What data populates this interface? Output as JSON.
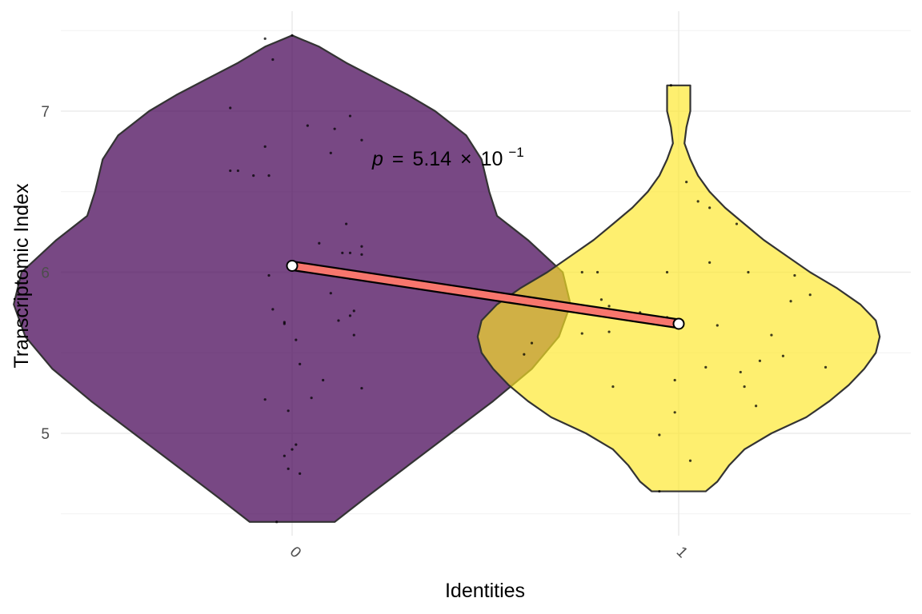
{
  "chart_data": {
    "type": "violin",
    "title": "",
    "xlabel": "Identities",
    "ylabel": "Transcriptomic Index",
    "categories": [
      "0",
      "1"
    ],
    "ylim": [
      4.42,
      7.52
    ],
    "yticks": [
      5,
      6,
      7
    ],
    "ytick_labels": [
      "5",
      "6",
      "7"
    ],
    "grid": true,
    "legend": "none",
    "colors": {
      "0": "#440154",
      "1": "#FDE725",
      "trend_line": "#F8766D"
    },
    "groups": [
      {
        "name": "0",
        "range": [
          4.45,
          7.47
        ],
        "mean": 6.04,
        "density": [
          [
            4.45,
            0.11
          ],
          [
            4.6,
            0.19
          ],
          [
            4.8,
            0.3
          ],
          [
            5.0,
            0.41
          ],
          [
            5.2,
            0.52
          ],
          [
            5.4,
            0.62
          ],
          [
            5.6,
            0.69
          ],
          [
            5.8,
            0.72
          ],
          [
            6.0,
            0.7
          ],
          [
            6.2,
            0.61
          ],
          [
            6.35,
            0.53
          ],
          [
            6.5,
            0.51
          ],
          [
            6.6,
            0.5
          ],
          [
            6.7,
            0.49
          ],
          [
            6.85,
            0.45
          ],
          [
            7.0,
            0.37
          ],
          [
            7.1,
            0.3
          ],
          [
            7.2,
            0.22
          ],
          [
            7.3,
            0.14
          ],
          [
            7.4,
            0.07
          ],
          [
            7.47,
            0.0
          ]
        ],
        "points": [
          [
            -0.07,
            7.45
          ],
          [
            0.0,
            7.47
          ],
          [
            -0.05,
            7.32
          ],
          [
            -0.16,
            7.02
          ],
          [
            0.15,
            6.97
          ],
          [
            0.04,
            6.91
          ],
          [
            0.11,
            6.89
          ],
          [
            0.18,
            6.82
          ],
          [
            -0.07,
            6.78
          ],
          [
            0.1,
            6.74
          ],
          [
            -0.16,
            6.63
          ],
          [
            -0.14,
            6.63
          ],
          [
            -0.1,
            6.6
          ],
          [
            -0.06,
            6.6
          ],
          [
            0.14,
            6.3
          ],
          [
            0.07,
            6.18
          ],
          [
            0.13,
            6.12
          ],
          [
            0.15,
            6.12
          ],
          [
            0.18,
            6.16
          ],
          [
            0.18,
            6.11
          ],
          [
            -0.06,
            5.98
          ],
          [
            0.15,
            5.96
          ],
          [
            0.1,
            5.87
          ],
          [
            -0.05,
            5.77
          ],
          [
            0.16,
            5.76
          ],
          [
            0.15,
            5.73
          ],
          [
            0.12,
            5.7
          ],
          [
            -0.02,
            5.69
          ],
          [
            -0.02,
            5.68
          ],
          [
            0.01,
            5.58
          ],
          [
            0.16,
            5.61
          ],
          [
            0.02,
            5.43
          ],
          [
            0.08,
            5.33
          ],
          [
            0.18,
            5.28
          ],
          [
            0.05,
            5.22
          ],
          [
            -0.07,
            5.21
          ],
          [
            -0.01,
            5.14
          ],
          [
            0.01,
            4.93
          ],
          [
            0.0,
            4.9
          ],
          [
            -0.02,
            4.86
          ],
          [
            -0.01,
            4.78
          ],
          [
            0.02,
            4.75
          ],
          [
            -0.04,
            4.45
          ]
        ]
      },
      {
        "name": "1",
        "range": [
          4.64,
          7.16
        ],
        "mean": 5.68,
        "density": [
          [
            4.64,
            0.07
          ],
          [
            4.7,
            0.1
          ],
          [
            4.8,
            0.13
          ],
          [
            4.9,
            0.17
          ],
          [
            5.0,
            0.24
          ],
          [
            5.1,
            0.33
          ],
          [
            5.2,
            0.39
          ],
          [
            5.3,
            0.44
          ],
          [
            5.4,
            0.48
          ],
          [
            5.5,
            0.51
          ],
          [
            5.6,
            0.52
          ],
          [
            5.7,
            0.51
          ],
          [
            5.8,
            0.47
          ],
          [
            5.9,
            0.41
          ],
          [
            6.0,
            0.34
          ],
          [
            6.1,
            0.28
          ],
          [
            6.2,
            0.22
          ],
          [
            6.3,
            0.17
          ],
          [
            6.4,
            0.12
          ],
          [
            6.5,
            0.08
          ],
          [
            6.6,
            0.05
          ],
          [
            6.7,
            0.03
          ],
          [
            6.8,
            0.015
          ],
          [
            6.9,
            0.02
          ],
          [
            7.0,
            0.03
          ],
          [
            7.1,
            0.03
          ],
          [
            7.16,
            0.03
          ]
        ],
        "points": [
          [
            -0.02,
            7.16
          ],
          [
            0.02,
            6.56
          ],
          [
            0.05,
            6.44
          ],
          [
            0.08,
            6.4
          ],
          [
            0.15,
            6.3
          ],
          [
            -0.25,
            6.0
          ],
          [
            -0.21,
            6.0
          ],
          [
            -0.03,
            6.0
          ],
          [
            0.08,
            6.06
          ],
          [
            0.18,
            6.0
          ],
          [
            0.3,
            5.98
          ],
          [
            0.34,
            5.86
          ],
          [
            -0.2,
            5.83
          ],
          [
            0.29,
            5.82
          ],
          [
            -0.18,
            5.79
          ],
          [
            -0.1,
            5.75
          ],
          [
            -0.03,
            5.72
          ],
          [
            -0.38,
            5.56
          ],
          [
            -0.4,
            5.49
          ],
          [
            -0.25,
            5.62
          ],
          [
            -0.18,
            5.63
          ],
          [
            0.1,
            5.67
          ],
          [
            0.24,
            5.61
          ],
          [
            0.27,
            5.48
          ],
          [
            0.21,
            5.45
          ],
          [
            0.07,
            5.41
          ],
          [
            0.16,
            5.38
          ],
          [
            0.38,
            5.41
          ],
          [
            -0.01,
            5.33
          ],
          [
            0.17,
            5.29
          ],
          [
            -0.17,
            5.29
          ],
          [
            0.2,
            5.17
          ],
          [
            -0.01,
            5.13
          ],
          [
            -0.05,
            4.99
          ],
          [
            0.03,
            4.83
          ],
          [
            -0.05,
            4.64
          ]
        ]
      }
    ],
    "annotations": [
      {
        "type": "p-value",
        "x_between": [
          "0",
          "1"
        ],
        "y": 6.7,
        "prefix": "p",
        "equals": "=",
        "mantissa": "5.14",
        "times": "×",
        "base": "10",
        "exponent": "−1"
      }
    ]
  }
}
